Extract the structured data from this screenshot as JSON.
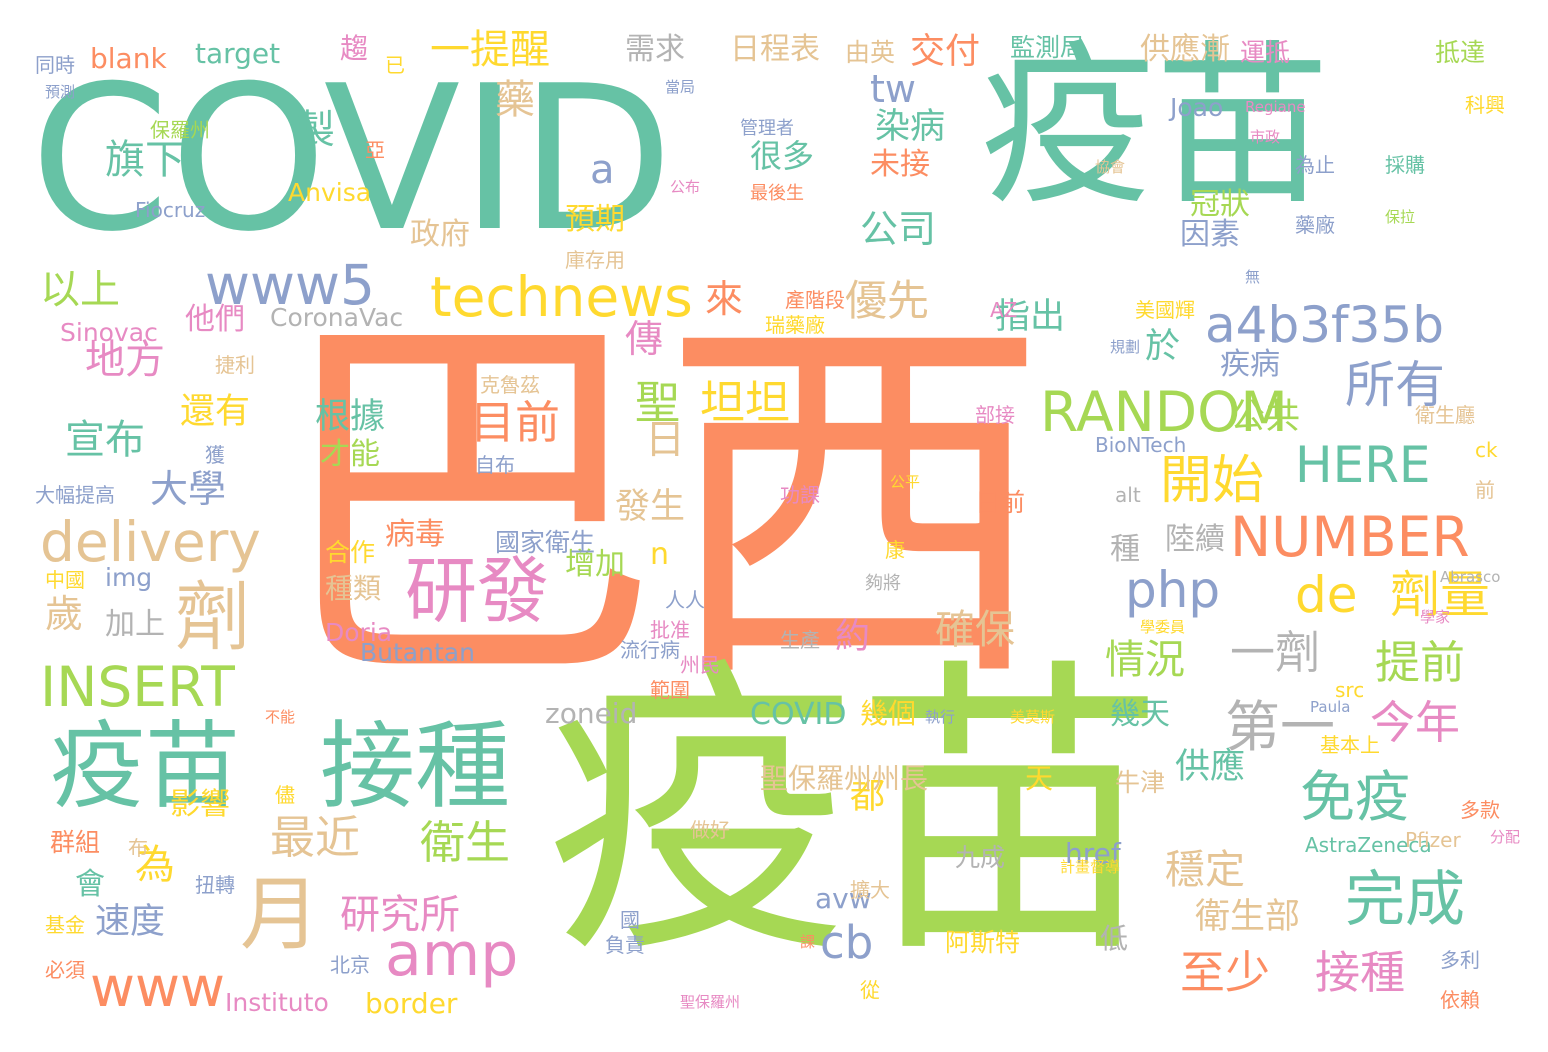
{
  "palette": {
    "teal": "#66c2a5",
    "orange": "#fc8d62",
    "blue": "#8da0cb",
    "pink": "#e78ac3",
    "green": "#a6d854",
    "yellow": "#ffd92f",
    "tan": "#e5c494",
    "gray": "#b3b3b3"
  },
  "words": [
    {
      "text": "巴西",
      "color": "orange"
    },
    {
      "text": "疫苗",
      "color": "green"
    },
    {
      "text": "COVID",
      "color": "teal"
    },
    {
      "text": "疫苗",
      "color": "teal"
    },
    {
      "text": "疫苗",
      "color": "teal"
    },
    {
      "text": "接種",
      "color": "teal"
    },
    {
      "text": "研發",
      "color": "pink"
    },
    {
      "text": "月",
      "color": "tan"
    },
    {
      "text": "劑",
      "color": "tan"
    },
    {
      "text": "amp",
      "color": "pink"
    },
    {
      "text": "technews",
      "color": "yellow"
    },
    {
      "text": "www5",
      "color": "blue"
    },
    {
      "text": "delivery",
      "color": "tan"
    },
    {
      "text": "INSERT",
      "color": "green"
    },
    {
      "text": "RANDOM",
      "color": "green"
    },
    {
      "text": "NUMBER",
      "color": "orange"
    },
    {
      "text": "HERE",
      "color": "teal"
    },
    {
      "text": "a4b3f35b",
      "color": "blue"
    },
    {
      "text": "php",
      "color": "blue"
    },
    {
      "text": "de",
      "color": "yellow"
    },
    {
      "text": "劑量",
      "color": "yellow"
    },
    {
      "text": "所有",
      "color": "blue"
    },
    {
      "text": "開始",
      "color": "yellow"
    },
    {
      "text": "免疫",
      "color": "teal"
    },
    {
      "text": "完成",
      "color": "teal"
    },
    {
      "text": "第一",
      "color": "gray"
    },
    {
      "text": "一劑",
      "color": "gray"
    },
    {
      "text": "今年",
      "color": "pink"
    },
    {
      "text": "提前",
      "color": "green"
    },
    {
      "text": "至少",
      "color": "orange"
    },
    {
      "text": "接種",
      "color": "pink"
    },
    {
      "text": "最近",
      "color": "tan"
    },
    {
      "text": "衛生",
      "color": "green"
    },
    {
      "text": "研究所",
      "color": "pink"
    },
    {
      "text": "www",
      "color": "orange"
    },
    {
      "text": "cb",
      "color": "blue"
    },
    {
      "text": "穩定",
      "color": "tan"
    },
    {
      "text": "情況",
      "color": "green"
    },
    {
      "text": "確保",
      "color": "tan"
    },
    {
      "text": "約",
      "color": "pink"
    },
    {
      "text": "聖",
      "color": "green"
    },
    {
      "text": "坦坦",
      "color": "yellow"
    },
    {
      "text": "目前",
      "color": "orange"
    },
    {
      "text": "根據",
      "color": "teal"
    },
    {
      "text": "才能",
      "color": "green"
    },
    {
      "text": "優先",
      "color": "tan"
    },
    {
      "text": "公司",
      "color": "teal"
    },
    {
      "text": "指出",
      "color": "teal"
    },
    {
      "text": "染病",
      "color": "teal"
    },
    {
      "text": "很多",
      "color": "teal"
    },
    {
      "text": "未接",
      "color": "orange"
    },
    {
      "text": "tw",
      "color": "blue"
    },
    {
      "text": "交付",
      "color": "orange"
    },
    {
      "text": "一提醒",
      "color": "yellow"
    },
    {
      "text": "藥",
      "color": "tan"
    },
    {
      "text": "製",
      "color": "teal"
    },
    {
      "text": "旗下",
      "color": "teal"
    },
    {
      "text": "a",
      "color": "blue"
    },
    {
      "text": "以上",
      "color": "green"
    },
    {
      "text": "地方",
      "color": "pink"
    },
    {
      "text": "宣布",
      "color": "teal"
    },
    {
      "text": "大學",
      "color": "blue"
    },
    {
      "text": "歲",
      "color": "tan"
    },
    {
      "text": "來",
      "color": "orange"
    },
    {
      "text": "日",
      "color": "tan"
    },
    {
      "text": "傳",
      "color": "pink"
    },
    {
      "text": "發生",
      "color": "tan"
    },
    {
      "text": "n",
      "color": "yellow"
    },
    {
      "text": "於",
      "color": "teal"
    },
    {
      "text": "公共",
      "color": "green"
    },
    {
      "text": "供應",
      "color": "teal"
    },
    {
      "text": "衛生部",
      "color": "tan"
    },
    {
      "text": "都",
      "color": "yellow"
    },
    {
      "text": "為",
      "color": "yellow"
    },
    {
      "text": "速度",
      "color": "blue"
    },
    {
      "text": "會",
      "color": "teal"
    },
    {
      "text": "影響",
      "color": "yellow"
    },
    {
      "text": "還有",
      "color": "yellow"
    },
    {
      "text": "他們",
      "color": "pink"
    },
    {
      "text": "預期",
      "color": "yellow"
    },
    {
      "text": "政府",
      "color": "tan"
    },
    {
      "text": "冠狀",
      "color": "green"
    },
    {
      "text": "因素",
      "color": "blue"
    },
    {
      "text": "疾病",
      "color": "blue"
    },
    {
      "text": "病毒",
      "color": "orange"
    },
    {
      "text": "增加",
      "color": "green"
    },
    {
      "text": "種類",
      "color": "tan"
    },
    {
      "text": "種",
      "color": "gray"
    },
    {
      "text": "陸續",
      "color": "gray"
    },
    {
      "text": "加上",
      "color": "gray"
    },
    {
      "text": "幾天",
      "color": "teal"
    },
    {
      "text": "zoneid",
      "color": "gray"
    },
    {
      "text": "COVID",
      "color": "teal"
    },
    {
      "text": "幾個",
      "color": "yellow"
    },
    {
      "text": "聖保羅州州長",
      "color": "tan"
    },
    {
      "text": "天",
      "color": "yellow"
    },
    {
      "text": "牛津",
      "color": "tan"
    },
    {
      "text": "九成",
      "color": "gray"
    },
    {
      "text": "href",
      "color": "blue"
    },
    {
      "text": "avw",
      "color": "blue"
    },
    {
      "text": "低",
      "color": "gray"
    },
    {
      "text": "阿斯特",
      "color": "yellow"
    },
    {
      "text": "border",
      "color": "yellow"
    },
    {
      "text": "Instituto",
      "color": "pink"
    },
    {
      "text": "Butantan",
      "color": "blue"
    },
    {
      "text": "Doria",
      "color": "pink"
    },
    {
      "text": "img",
      "color": "blue"
    },
    {
      "text": "中國",
      "color": "yellow"
    },
    {
      "text": "合作",
      "color": "yellow"
    },
    {
      "text": "國家衛生",
      "color": "blue"
    },
    {
      "text": "群組",
      "color": "orange"
    },
    {
      "text": "布",
      "color": "tan"
    },
    {
      "text": "扭轉",
      "color": "blue"
    },
    {
      "text": "基金",
      "color": "yellow"
    },
    {
      "text": "必須",
      "color": "orange"
    },
    {
      "text": "北京",
      "color": "blue"
    },
    {
      "text": "負責",
      "color": "blue"
    },
    {
      "text": "從",
      "color": "yellow"
    },
    {
      "text": "擴大",
      "color": "tan"
    },
    {
      "text": "做好",
      "color": "tan"
    },
    {
      "text": "生產",
      "color": "gray"
    },
    {
      "text": "計畫督導",
      "color": "yellow"
    },
    {
      "text": "AstraZeneca",
      "color": "teal"
    },
    {
      "text": "Pfizer",
      "color": "tan"
    },
    {
      "text": "多款",
      "color": "orange"
    },
    {
      "text": "分配",
      "color": "pink"
    },
    {
      "text": "多利",
      "color": "blue"
    },
    {
      "text": "依賴",
      "color": "orange"
    },
    {
      "text": "基本上",
      "color": "yellow"
    },
    {
      "text": "Paula",
      "color": "blue"
    },
    {
      "text": "src",
      "color": "yellow"
    },
    {
      "text": "alt",
      "color": "gray"
    },
    {
      "text": "ck",
      "color": "yellow"
    },
    {
      "text": "前",
      "color": "tan"
    },
    {
      "text": "衛生廳",
      "color": "tan"
    },
    {
      "text": "BioNTech",
      "color": "blue"
    },
    {
      "text": "部接",
      "color": "pink"
    },
    {
      "text": "功課",
      "color": "pink"
    },
    {
      "text": "公平",
      "color": "yellow"
    },
    {
      "text": "日前",
      "color": "orange"
    },
    {
      "text": "克魯茲",
      "color": "tan"
    },
    {
      "text": "自布",
      "color": "blue"
    },
    {
      "text": "Abrasco",
      "color": "gray"
    },
    {
      "text": "學家",
      "color": "pink"
    },
    {
      "text": "學委員",
      "color": "yellow"
    },
    {
      "text": "流行病",
      "color": "blue"
    },
    {
      "text": "範圍",
      "color": "orange"
    },
    {
      "text": "執行",
      "color": "blue"
    },
    {
      "text": "美莫斯",
      "color": "yellow"
    },
    {
      "text": "Sinovac",
      "color": "pink"
    },
    {
      "text": "CoronaVac",
      "color": "gray"
    },
    {
      "text": "捷利",
      "color": "tan"
    },
    {
      "text": "AZ",
      "color": "pink"
    },
    {
      "text": "瑞藥廠",
      "color": "yellow"
    },
    {
      "text": "美國輝",
      "color": "yellow"
    },
    {
      "text": "產階段",
      "color": "orange"
    },
    {
      "text": "庫存用",
      "color": "tan"
    },
    {
      "text": "無",
      "color": "blue"
    },
    {
      "text": "規劃",
      "color": "blue"
    },
    {
      "text": "Anvisa",
      "color": "yellow"
    },
    {
      "text": "Fiocruz",
      "color": "blue"
    },
    {
      "text": "保羅州",
      "color": "green"
    },
    {
      "text": "同時",
      "color": "blue"
    },
    {
      "text": "預測",
      "color": "blue"
    },
    {
      "text": "blank",
      "color": "orange"
    },
    {
      "text": "target",
      "color": "teal"
    },
    {
      "text": "趨",
      "color": "pink"
    },
    {
      "text": "已",
      "color": "yellow"
    },
    {
      "text": "亞",
      "color": "orange"
    },
    {
      "text": "需求",
      "color": "gray"
    },
    {
      "text": "日程表",
      "color": "tan"
    },
    {
      "text": "由英",
      "color": "tan"
    },
    {
      "text": "監測局",
      "color": "teal"
    },
    {
      "text": "供應漸",
      "color": "tan"
    },
    {
      "text": "運抵",
      "color": "pink"
    },
    {
      "text": "抵達",
      "color": "green"
    },
    {
      "text": "Joao",
      "color": "blue"
    },
    {
      "text": "Regiane",
      "color": "pink"
    },
    {
      "text": "市政",
      "color": "pink"
    },
    {
      "text": "協會",
      "color": "tan"
    },
    {
      "text": "科興",
      "color": "yellow"
    },
    {
      "text": "為止",
      "color": "blue"
    },
    {
      "text": "採購",
      "color": "teal"
    },
    {
      "text": "藥廠",
      "color": "blue"
    },
    {
      "text": "保拉",
      "color": "green"
    },
    {
      "text": "當局",
      "color": "blue"
    },
    {
      "text": "管理者",
      "color": "blue"
    },
    {
      "text": "最後生",
      "color": "orange"
    },
    {
      "text": "公布",
      "color": "pink"
    },
    {
      "text": "不能",
      "color": "orange"
    },
    {
      "text": "國",
      "color": "blue"
    },
    {
      "text": "課",
      "color": "orange"
    },
    {
      "text": "大幅提高",
      "color": "blue"
    },
    {
      "text": "獲",
      "color": "blue"
    },
    {
      "text": "聖保羅州",
      "color": "pink"
    },
    {
      "text": "夠將",
      "color": "gray"
    },
    {
      "text": "人人",
      "color": "blue"
    },
    {
      "text": "批准",
      "color": "pink"
    },
    {
      "text": "州民",
      "color": "pink"
    },
    {
      "text": "康",
      "color": "yellow"
    },
    {
      "text": "儘",
      "color": "yellow"
    }
  ]
}
